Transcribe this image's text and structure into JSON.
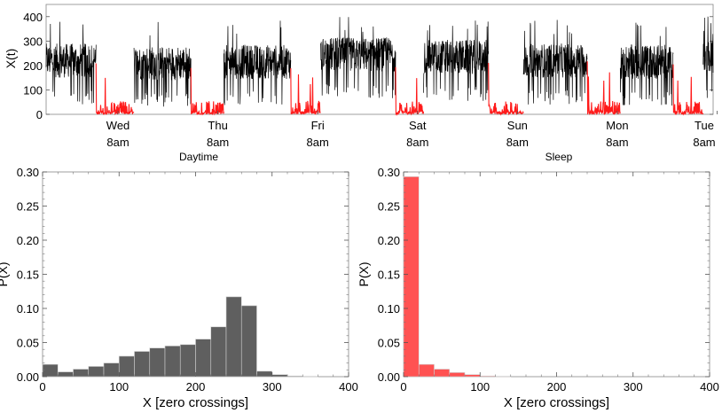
{
  "chart_data": [
    {
      "type": "line",
      "title": "",
      "ylabel": "X(t)",
      "xlabel": "",
      "ylim": [
        0,
        450
      ],
      "xlim": [
        0,
        6.68
      ],
      "yticks": [
        0,
        100,
        200,
        300,
        400
      ],
      "grid": false,
      "day_labels": [
        {
          "day": "Wed",
          "time": "8am",
          "x": 0.72
        },
        {
          "day": "Thu",
          "time": "8am",
          "x": 1.72
        },
        {
          "day": "Fri",
          "time": "8am",
          "x": 2.72
        },
        {
          "day": "Sat",
          "time": "8am",
          "x": 3.72
        },
        {
          "day": "Sun",
          "time": "8am",
          "x": 4.72
        },
        {
          "day": "Mon",
          "time": "8am",
          "x": 5.72
        },
        {
          "day": "Tue",
          "time": "8am",
          "x": 6.72
        }
      ],
      "legend": [
        {
          "label": "Daytime",
          "color": "#000000"
        },
        {
          "label": "Sleep",
          "color": "#ff1a1a"
        }
      ],
      "segments": [
        {
          "state": "Daytime",
          "x0": 0.0,
          "x1": 0.5,
          "level": 220
        },
        {
          "state": "Sleep",
          "x0": 0.5,
          "x1": 0.88,
          "level": 30
        },
        {
          "state": "Daytime",
          "x0": 0.88,
          "x1": 1.45,
          "level": 210
        },
        {
          "state": "Sleep",
          "x0": 1.45,
          "x1": 1.78,
          "level": 30
        },
        {
          "state": "Daytime",
          "x0": 1.78,
          "x1": 2.45,
          "level": 215
        },
        {
          "state": "Sleep",
          "x0": 2.45,
          "x1": 2.75,
          "level": 30
        },
        {
          "state": "Daytime",
          "x0": 2.75,
          "x1": 3.5,
          "level": 245
        },
        {
          "state": "Sleep",
          "x0": 3.5,
          "x1": 3.78,
          "level": 25
        },
        {
          "state": "Daytime",
          "x0": 3.78,
          "x1": 4.43,
          "level": 235
        },
        {
          "state": "Sleep",
          "x0": 4.43,
          "x1": 4.78,
          "level": 25
        },
        {
          "state": "Daytime",
          "x0": 4.78,
          "x1": 5.42,
          "level": 220
        },
        {
          "state": "Sleep",
          "x0": 5.42,
          "x1": 5.75,
          "level": 30
        },
        {
          "state": "Daytime",
          "x0": 5.75,
          "x1": 6.28,
          "level": 215
        },
        {
          "state": "Sleep",
          "x0": 6.28,
          "x1": 6.58,
          "level": 30
        },
        {
          "state": "Daytime",
          "x0": 6.58,
          "x1": 6.68,
          "level": 230
        }
      ]
    },
    {
      "type": "bar",
      "title": "Daytime",
      "xlabel": "X [zero crossings]",
      "ylabel": "P(X)",
      "xlim": [
        0,
        400
      ],
      "ylim": [
        0,
        0.3
      ],
      "xticks": [
        0,
        100,
        200,
        300,
        400
      ],
      "yticks": [
        0.0,
        0.05,
        0.1,
        0.15,
        0.2,
        0.25,
        0.3
      ],
      "yticklabels": [
        "0.00",
        "0.05",
        "0.10",
        "0.15",
        "0.20",
        "0.25",
        "0.30"
      ],
      "bin_width": 20,
      "color": "#5f5f5f",
      "bins": [
        0,
        20,
        40,
        60,
        80,
        100,
        120,
        140,
        160,
        180,
        200,
        220,
        240,
        260,
        280,
        300,
        320,
        340
      ],
      "values": [
        0.018,
        0.007,
        0.011,
        0.015,
        0.02,
        0.03,
        0.037,
        0.042,
        0.045,
        0.047,
        0.055,
        0.073,
        0.117,
        0.104,
        0.008,
        0.003,
        0.001,
        0.0005
      ]
    },
    {
      "type": "bar",
      "title": "Sleep",
      "xlabel": "X [zero crossings]",
      "ylabel": "P(X)",
      "xlim": [
        0,
        400
      ],
      "ylim": [
        0,
        0.3
      ],
      "xticks": [
        0,
        100,
        200,
        300,
        400
      ],
      "yticks": [
        0.0,
        0.05,
        0.1,
        0.15,
        0.2,
        0.25,
        0.3
      ],
      "yticklabels": [
        "0.00",
        "0.05",
        "0.10",
        "0.15",
        "0.20",
        "0.25",
        "0.30"
      ],
      "bin_width": 20,
      "color": "#ff5252",
      "bins": [
        0,
        20,
        40,
        60,
        80,
        100,
        120
      ],
      "values": [
        0.293,
        0.018,
        0.011,
        0.006,
        0.003,
        0.001,
        0.0005
      ]
    }
  ]
}
